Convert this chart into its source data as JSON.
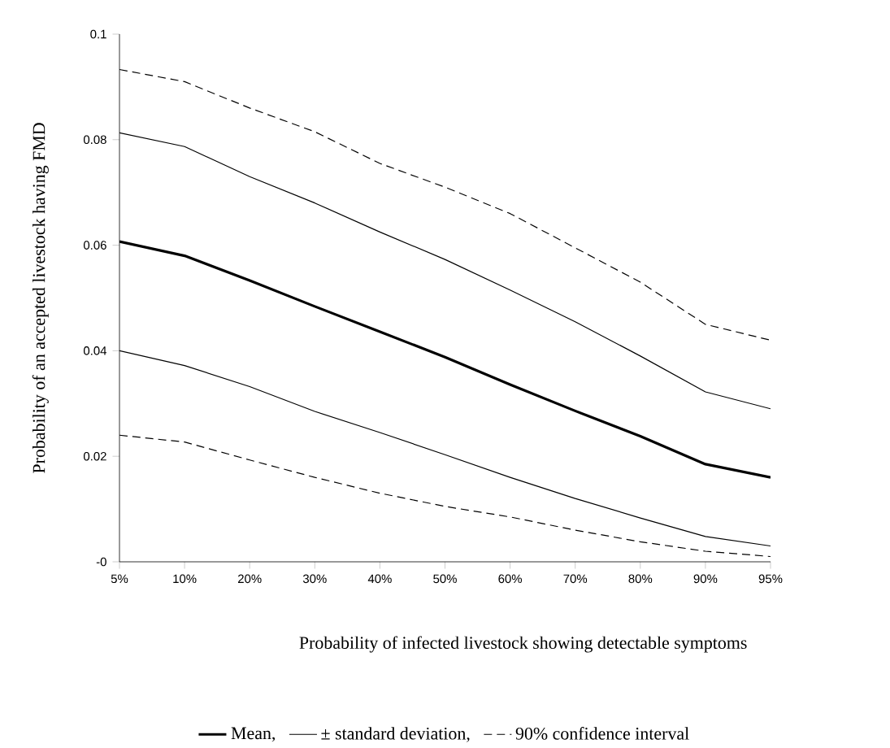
{
  "chart_data": {
    "type": "line",
    "xlabel": "Probability of infected livestock showing detectable symptoms",
    "ylabel": "Probability of an accepted livestock having FMD",
    "categories": [
      "5%",
      "10%",
      "20%",
      "30%",
      "40%",
      "50%",
      "60%",
      "70%",
      "80%",
      "90%",
      "95%"
    ],
    "ylim": [
      0,
      0.1
    ],
    "yticks": [
      {
        "value": 0,
        "label": "-0"
      },
      0.02,
      0.04,
      0.06,
      0.08,
      0.1
    ],
    "grid": false,
    "legend": "bottom",
    "marker": "none",
    "series": [
      {
        "name": "Mean,",
        "color": "#000000",
        "line_style": "solid",
        "values": [
          0.0607,
          0.058,
          0.0533,
          0.0484,
          0.0436,
          0.0388,
          0.0336,
          0.0286,
          0.0238,
          0.0185,
          0.016
        ]
      },
      {
        "name": "± standard deviation,",
        "color": "#000000",
        "line_style": "solid",
        "values": [
          0.0813,
          0.0787,
          0.073,
          0.068,
          0.0625,
          0.0573,
          0.0515,
          0.0455,
          0.039,
          0.0322,
          0.029
        ]
      },
      {
        "color": "#000000",
        "line_style": "solid",
        "values": [
          0.04,
          0.0372,
          0.0332,
          0.0285,
          0.0245,
          0.0203,
          0.016,
          0.012,
          0.0083,
          0.0048,
          0.003
        ]
      },
      {
        "name": "90% confidence interval",
        "color": "#000000",
        "line_style": "dashed",
        "values": [
          0.0933,
          0.091,
          0.086,
          0.0815,
          0.0755,
          0.071,
          0.066,
          0.0595,
          0.053,
          0.045,
          0.042
        ]
      },
      {
        "color": "#000000",
        "line_style": "dashed",
        "values": [
          0.024,
          0.0227,
          0.0193,
          0.016,
          0.013,
          0.0105,
          0.0085,
          0.006,
          0.0038,
          0.002,
          0.001
        ]
      }
    ]
  }
}
